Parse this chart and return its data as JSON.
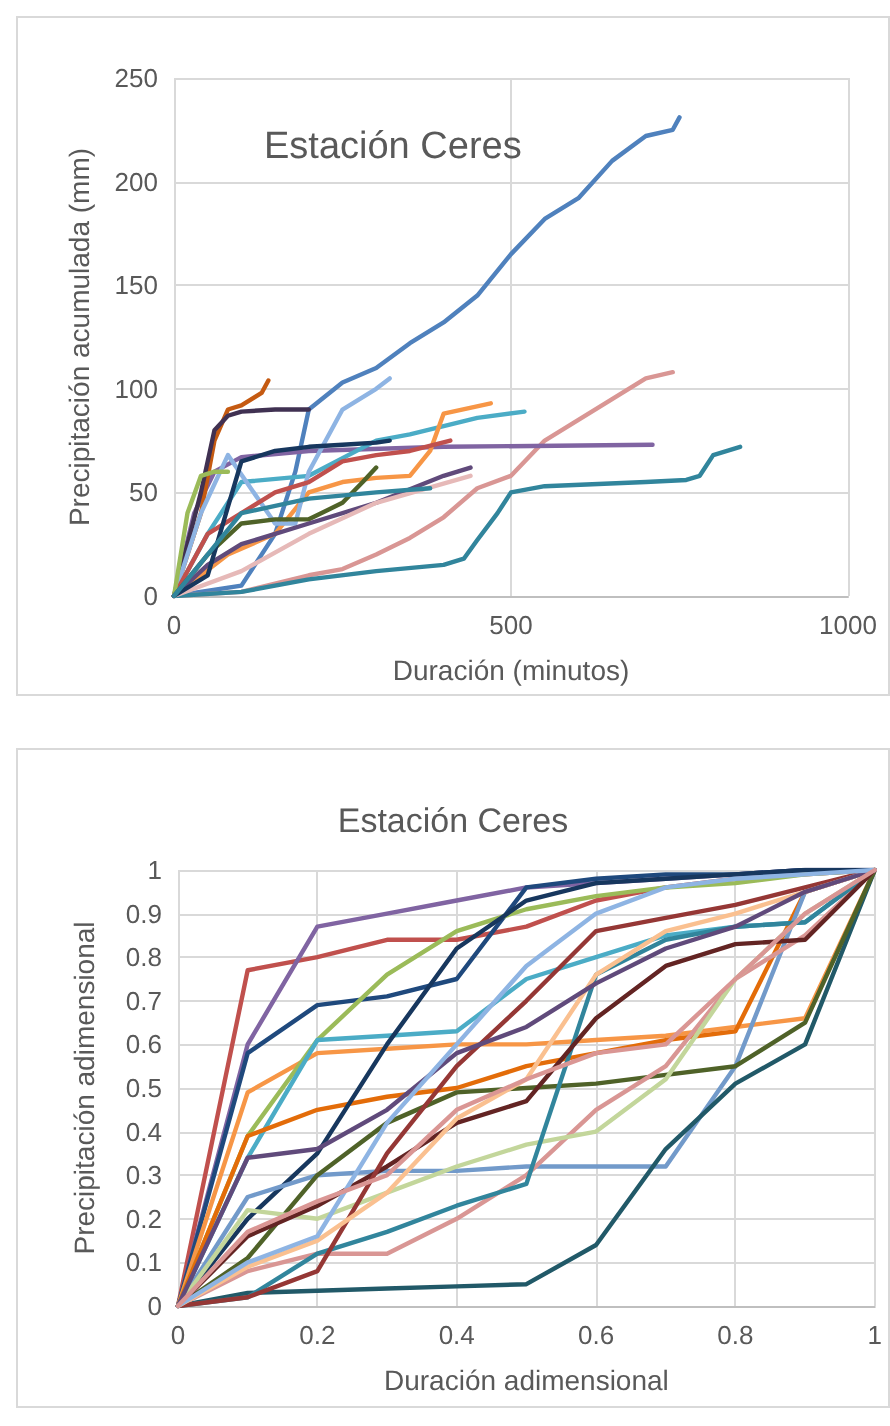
{
  "chart_data": [
    {
      "type": "line",
      "title": "Estación Ceres",
      "xlabel": "Duración (minutos)",
      "ylabel": "Precipitación acumulada (mm)",
      "xlim": [
        0,
        1000
      ],
      "xticks": [
        0,
        500,
        1000
      ],
      "ylim": [
        0,
        250
      ],
      "yticks": [
        0,
        50,
        100,
        150,
        200,
        250
      ],
      "grid": true,
      "marker": "none",
      "line_style": "solid",
      "series": [
        {
          "color": "#4f81bd",
          "x": [
            0,
            100,
            150,
            180,
            200,
            250,
            300,
            350,
            400,
            450,
            500,
            550,
            600,
            650,
            700,
            740,
            750
          ],
          "values": [
            0,
            5,
            30,
            60,
            90,
            103,
            110,
            122,
            132,
            145,
            165,
            182,
            192,
            210,
            222,
            225,
            231
          ]
        },
        {
          "color": "#d99694",
          "x": [
            0,
            100,
            200,
            250,
            300,
            350,
            400,
            450,
            500,
            550,
            600,
            650,
            700,
            740
          ],
          "values": [
            0,
            2,
            10,
            13,
            20,
            28,
            38,
            52,
            58,
            75,
            85,
            95,
            105,
            108
          ]
        },
        {
          "color": "#31859c",
          "x": [
            0,
            100,
            200,
            300,
            400,
            430,
            450,
            480,
            500,
            550,
            700,
            760,
            780,
            800,
            840
          ],
          "values": [
            0,
            2,
            8,
            12,
            15,
            18,
            27,
            40,
            50,
            53,
            55,
            56,
            58,
            68,
            72
          ]
        },
        {
          "color": "#8064a2",
          "x": [
            0,
            30,
            60,
            100,
            200,
            400,
            710
          ],
          "values": [
            0,
            40,
            60,
            67,
            70,
            72,
            73
          ]
        },
        {
          "color": "#4bacc6",
          "x": [
            0,
            50,
            100,
            200,
            300,
            350,
            400,
            450,
            520
          ],
          "values": [
            0,
            30,
            55,
            58,
            75,
            78,
            82,
            86,
            89
          ]
        },
        {
          "color": "#f79646",
          "x": [
            0,
            80,
            150,
            200,
            250,
            300,
            350,
            380,
            400,
            470
          ],
          "values": [
            0,
            20,
            30,
            50,
            55,
            57,
            58,
            70,
            88,
            93
          ]
        },
        {
          "color": "#c55a11",
          "x": [
            0,
            40,
            60,
            80,
            100,
            130,
            140
          ],
          "values": [
            0,
            40,
            75,
            90,
            92,
            98,
            104
          ]
        },
        {
          "color": "#403152",
          "x": [
            0,
            40,
            60,
            80,
            100,
            150,
            200
          ],
          "values": [
            0,
            50,
            80,
            87,
            89,
            90,
            90
          ]
        },
        {
          "color": "#8eb4e3",
          "x": [
            0,
            40,
            80,
            150,
            180,
            200,
            250,
            300,
            320
          ],
          "values": [
            0,
            40,
            68,
            35,
            35,
            60,
            90,
            100,
            105
          ]
        },
        {
          "color": "#c0504d",
          "x": [
            0,
            50,
            100,
            150,
            200,
            250,
            300,
            350,
            410
          ],
          "values": [
            0,
            30,
            40,
            50,
            55,
            65,
            68,
            70,
            75
          ]
        },
        {
          "color": "#9bbb59",
          "x": [
            0,
            20,
            40,
            60,
            80
          ],
          "values": [
            0,
            40,
            58,
            60,
            60
          ]
        },
        {
          "color": "#4f6228",
          "x": [
            0,
            50,
            100,
            150,
            200,
            250,
            280,
            300
          ],
          "values": [
            0,
            20,
            35,
            37,
            37,
            45,
            55,
            62
          ]
        },
        {
          "color": "#604a7b",
          "x": [
            0,
            50,
            100,
            200,
            300,
            400,
            440
          ],
          "values": [
            0,
            15,
            25,
            35,
            45,
            58,
            62
          ]
        },
        {
          "color": "#e6b9b8",
          "x": [
            0,
            100,
            200,
            300,
            440
          ],
          "values": [
            0,
            12,
            30,
            45,
            58
          ]
        },
        {
          "color": "#17375e",
          "x": [
            0,
            50,
            100,
            150,
            200,
            250,
            300,
            320
          ],
          "values": [
            0,
            10,
            65,
            70,
            72,
            73,
            74,
            75
          ]
        },
        {
          "color": "#31859c",
          "x": [
            0,
            100,
            200,
            300,
            380
          ],
          "values": [
            0,
            40,
            47,
            50,
            52
          ]
        }
      ]
    },
    {
      "type": "line",
      "title": "Estación Ceres",
      "xlabel": "Duración adimensional",
      "ylabel": "Precipitación adimensional",
      "xlim": [
        0,
        1
      ],
      "xticks": [
        0,
        0.2,
        0.4,
        0.6,
        0.8,
        1
      ],
      "ylim": [
        0,
        1
      ],
      "yticks": [
        0,
        0.1,
        0.2,
        0.3,
        0.4,
        0.5,
        0.6,
        0.7,
        0.8,
        0.9,
        1
      ],
      "grid": true,
      "marker": "none",
      "line_style": "solid",
      "x": [
        0,
        0.1,
        0.2,
        0.3,
        0.4,
        0.5,
        0.6,
        0.7,
        0.8,
        0.9,
        1
      ],
      "series": [
        {
          "color": "#c0504d",
          "values": [
            0,
            0.77,
            0.8,
            0.84,
            0.84,
            0.87,
            0.93,
            0.96,
            0.98,
            0.99,
            1
          ]
        },
        {
          "color": "#8064a2",
          "values": [
            0,
            0.6,
            0.87,
            0.9,
            0.93,
            0.96,
            0.97,
            0.98,
            0.99,
            1,
            1
          ]
        },
        {
          "color": "#1f497d",
          "values": [
            0,
            0.58,
            0.69,
            0.71,
            0.75,
            0.96,
            0.98,
            0.99,
            0.99,
            1,
            1
          ]
        },
        {
          "color": "#f79646",
          "values": [
            0,
            0.49,
            0.58,
            0.59,
            0.6,
            0.6,
            0.61,
            0.62,
            0.64,
            0.66,
            1
          ]
        },
        {
          "color": "#9bbb59",
          "values": [
            0,
            0.39,
            0.61,
            0.76,
            0.86,
            0.91,
            0.94,
            0.96,
            0.97,
            0.99,
            1
          ]
        },
        {
          "color": "#4bacc6",
          "values": [
            0,
            0.34,
            0.61,
            0.62,
            0.63,
            0.75,
            0.8,
            0.85,
            0.87,
            0.88,
            1
          ]
        },
        {
          "color": "#e36c09",
          "values": [
            0,
            0.39,
            0.45,
            0.48,
            0.5,
            0.55,
            0.58,
            0.61,
            0.63,
            0.95,
            1
          ]
        },
        {
          "color": "#17375e",
          "values": [
            0,
            0.2,
            0.35,
            0.6,
            0.82,
            0.93,
            0.97,
            0.98,
            0.99,
            1,
            1
          ]
        },
        {
          "color": "#729aca",
          "values": [
            0,
            0.25,
            0.3,
            0.31,
            0.31,
            0.32,
            0.32,
            0.32,
            0.55,
            0.95,
            1
          ]
        },
        {
          "color": "#215968",
          "values": [
            0,
            0.03,
            0.035,
            0.04,
            0.045,
            0.05,
            0.14,
            0.36,
            0.51,
            0.6,
            1
          ]
        },
        {
          "color": "#4f6228",
          "values": [
            0,
            0.11,
            0.3,
            0.42,
            0.49,
            0.5,
            0.51,
            0.53,
            0.55,
            0.65,
            1
          ]
        },
        {
          "color": "#d99694",
          "values": [
            0,
            0.08,
            0.12,
            0.12,
            0.2,
            0.3,
            0.45,
            0.55,
            0.75,
            0.85,
            1
          ]
        },
        {
          "color": "#c3d69b",
          "values": [
            0,
            0.22,
            0.2,
            0.26,
            0.32,
            0.37,
            0.4,
            0.52,
            0.75,
            0.9,
            1
          ]
        },
        {
          "color": "#31859c",
          "values": [
            0,
            0.02,
            0.12,
            0.17,
            0.23,
            0.28,
            0.76,
            0.84,
            0.87,
            0.88,
            1
          ]
        },
        {
          "color": "#632423",
          "values": [
            0,
            0.16,
            0.23,
            0.32,
            0.42,
            0.47,
            0.66,
            0.78,
            0.83,
            0.84,
            1
          ]
        },
        {
          "color": "#953735",
          "values": [
            0,
            0.02,
            0.08,
            0.35,
            0.55,
            0.7,
            0.86,
            0.89,
            0.92,
            0.96,
            1
          ]
        },
        {
          "color": "#fac090",
          "values": [
            0,
            0.09,
            0.15,
            0.26,
            0.43,
            0.52,
            0.76,
            0.86,
            0.9,
            0.95,
            1
          ]
        },
        {
          "color": "#604a7b",
          "values": [
            0,
            0.34,
            0.36,
            0.45,
            0.58,
            0.64,
            0.74,
            0.82,
            0.87,
            0.95,
            1
          ]
        },
        {
          "color": "#8eb4e3",
          "values": [
            0,
            0.1,
            0.16,
            0.42,
            0.6,
            0.78,
            0.9,
            0.96,
            0.98,
            0.99,
            1
          ]
        },
        {
          "color": "#da9694",
          "values": [
            0,
            0.17,
            0.24,
            0.3,
            0.45,
            0.52,
            0.58,
            0.6,
            0.75,
            0.9,
            1
          ]
        }
      ]
    }
  ]
}
